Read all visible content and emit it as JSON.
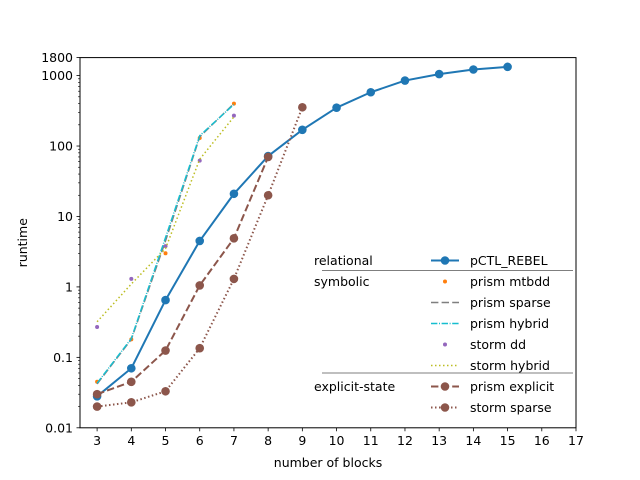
{
  "chart_data": {
    "type": "line",
    "title": "",
    "xlabel": "number of blocks",
    "ylabel": "runtime",
    "xlim": [
      2.5,
      17
    ],
    "ylim": [
      0.01,
      1800
    ],
    "yscale": "log",
    "grid": false,
    "legend_position": "lower-right",
    "x_ticks": [
      3,
      4,
      5,
      6,
      7,
      8,
      9,
      10,
      11,
      12,
      13,
      14,
      15,
      16,
      17
    ],
    "y_ticks": [
      0.01,
      0.1,
      1,
      10,
      100,
      1000,
      1800
    ],
    "y_tick_labels": [
      "0.01",
      "0.1",
      "1",
      "10",
      "100",
      "1000",
      "1800"
    ],
    "legend_groups": [
      {
        "label": "relational",
        "series": [
          "pCTL_REBEL"
        ]
      },
      {
        "label": "symbolic",
        "series": [
          "prism mtbdd",
          "prism sparse",
          "prism hybrid",
          "storm dd",
          "storm hybrid"
        ]
      },
      {
        "label": "explicit-state",
        "series": [
          "prism explicit",
          "storm sparse"
        ]
      }
    ],
    "series": [
      {
        "name": "pCTL_REBEL",
        "color": "#1f77b4",
        "line_style": "solid",
        "marker": "circle-large",
        "x": [
          3,
          4,
          5,
          6,
          7,
          8,
          9,
          10,
          11,
          12,
          13,
          14,
          15
        ],
        "y": [
          0.028,
          0.07,
          0.65,
          4.5,
          21,
          72,
          170,
          350,
          580,
          850,
          1050,
          1220,
          1330
        ]
      },
      {
        "name": "prism mtbdd",
        "color": "#ff7f0e",
        "line_style": "none",
        "marker": "circle-small",
        "x": [
          3,
          4,
          5,
          6,
          7
        ],
        "y": [
          0.045,
          0.18,
          3.0,
          130,
          400
        ]
      },
      {
        "name": "prism sparse",
        "color": "#7f7f7f",
        "line_style": "dashed",
        "marker": "none",
        "x": [
          3,
          4,
          5,
          6,
          7
        ],
        "y": [
          0.042,
          0.18,
          4.5,
          135,
          400
        ]
      },
      {
        "name": "prism hybrid",
        "color": "#17becf",
        "line_style": "dashdot",
        "marker": "none",
        "x": [
          3,
          4,
          5,
          6,
          7
        ],
        "y": [
          0.043,
          0.185,
          5.0,
          140,
          390
        ]
      },
      {
        "name": "storm dd",
        "color": "#9467bd",
        "line_style": "none",
        "marker": "circle-small",
        "x": [
          3,
          4,
          5,
          6,
          7
        ],
        "y": [
          0.27,
          1.3,
          3.8,
          62,
          270
        ]
      },
      {
        "name": "storm hybrid",
        "color": "#bcbd22",
        "line_style": "dotted",
        "marker": "none",
        "x": [
          3,
          4,
          5,
          6,
          7
        ],
        "y": [
          0.32,
          1.1,
          3.5,
          65,
          260
        ]
      },
      {
        "name": "prism explicit",
        "color": "#8c564b",
        "line_style": "dashed",
        "marker": "circle-large",
        "x": [
          3,
          4,
          5,
          6,
          7,
          8
        ],
        "y": [
          0.03,
          0.045,
          0.125,
          1.05,
          4.9,
          70
        ]
      },
      {
        "name": "storm sparse",
        "color": "#8c564b",
        "line_style": "dotted",
        "marker": "circle-large",
        "x": [
          3,
          4,
          5,
          6,
          7,
          8,
          9
        ],
        "y": [
          0.02,
          0.023,
          0.033,
          0.135,
          1.3,
          20,
          355
        ]
      }
    ]
  }
}
